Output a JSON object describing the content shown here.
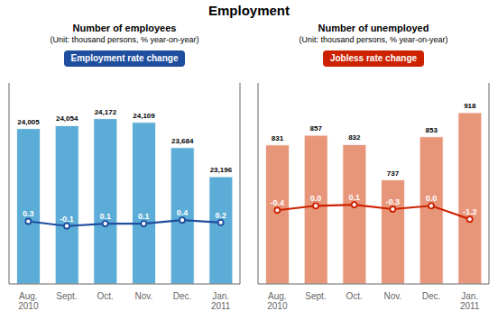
{
  "title": "Employment",
  "chart_data": [
    {
      "type": "bar",
      "title": "Number of employees",
      "subtitle": "(Unit: thousand persons, % year-on-year)",
      "annotation": "Employment rate change",
      "categories": [
        "Aug.\n2010",
        "Sept.",
        "Oct.",
        "Nov.",
        "Dec.",
        "Jan.\n2011"
      ],
      "ylim": [
        21396,
        24772
      ],
      "y2lim": [
        -5,
        12
      ],
      "tick_labels": "x",
      "grid": false,
      "series": [
        {
          "type": "bar",
          "color": "#5bacd6",
          "values": [
            24005,
            24054,
            24172,
            24109,
            23684,
            23196
          ],
          "value_labels": [
            "24,005",
            "24,054",
            "24,172",
            "24,109",
            "23,684",
            "23,196"
          ],
          "data_labels": true
        },
        {
          "type": "line",
          "axis": "y2",
          "color": "#1f4e9e",
          "marker": "circle",
          "values": [
            0.3,
            -0.1,
            0.1,
            0.1,
            0.4,
            0.2
          ],
          "value_labels": [
            "0.3",
            "-0.1",
            "0.1",
            "0.1",
            "0.4",
            "0.2"
          ],
          "data_labels": true
        }
      ]
    },
    {
      "type": "bar",
      "title": "Number of unemployed",
      "subtitle": "(Unit: thousand persons, % year-on-year)",
      "annotation": "Jobless rate change",
      "categories": [
        "Aug.\n2010",
        "Sept.",
        "Oct.",
        "Nov.",
        "Dec.",
        "Jan.\n2011"
      ],
      "ylim": [
        457,
        998
      ],
      "y2lim": [
        -7,
        11
      ],
      "tick_labels": "x",
      "grid": false,
      "series": [
        {
          "type": "bar",
          "color": "#e8967a",
          "values": [
            831,
            857,
            832,
            737,
            853,
            918
          ],
          "value_labels": [
            "831",
            "857",
            "832",
            "737",
            "853",
            "918"
          ],
          "data_labels": true
        },
        {
          "type": "line",
          "axis": "y2",
          "color": "#cc2200",
          "marker": "circle",
          "values": [
            -0.4,
            0.0,
            0.1,
            -0.3,
            0.0,
            -1.2
          ],
          "value_labels": [
            "-0.4",
            "0.0",
            "0.1",
            "-0.3",
            "0.0",
            "-1.2"
          ],
          "data_labels": true
        }
      ]
    }
  ]
}
